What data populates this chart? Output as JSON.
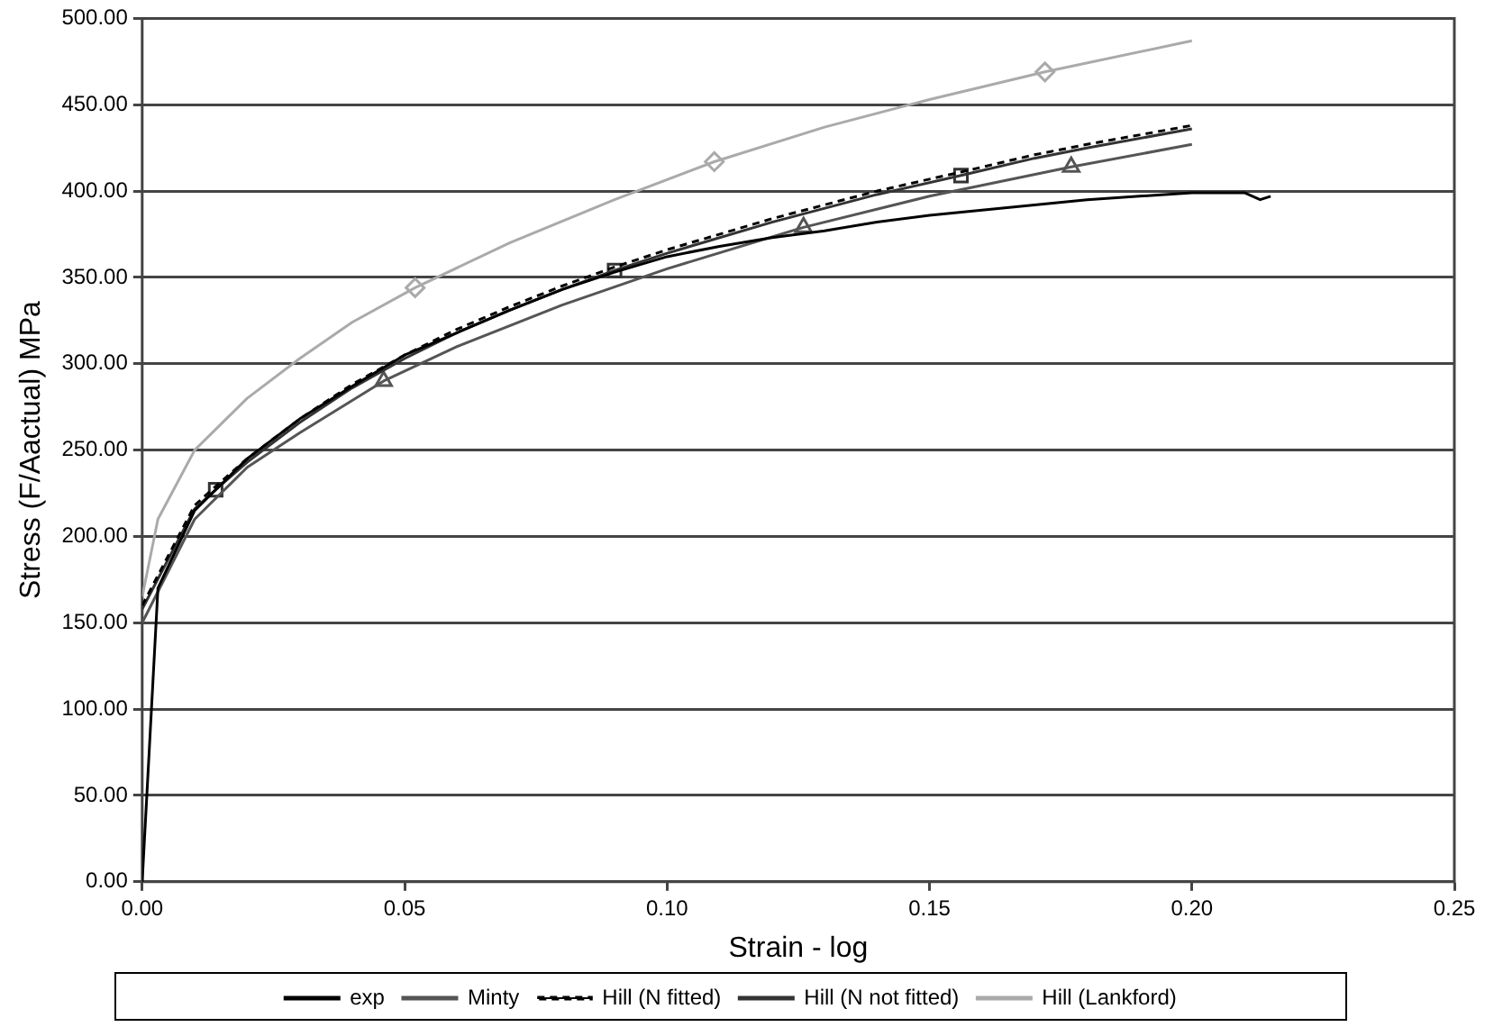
{
  "chart_data": {
    "type": "line",
    "xlabel": "Strain - log",
    "ylabel": "Stress (F/Aactual) MPa",
    "xlim": [
      0,
      0.25
    ],
    "xticks": [
      {
        "value": 0,
        "label": "0.00"
      },
      {
        "value": 0.05,
        "label": "0.05"
      },
      {
        "value": 0.1,
        "label": "0.10"
      },
      {
        "value": 0.15,
        "label": "0.15"
      },
      {
        "value": 0.2,
        "label": "0.20"
      },
      {
        "value": 0.25,
        "label": "0.25"
      }
    ],
    "ylim": [
      0,
      500
    ],
    "yticks": [
      {
        "value": 0,
        "label": "0.00"
      },
      {
        "value": 50,
        "label": "50.00"
      },
      {
        "value": 100,
        "label": "100.00"
      },
      {
        "value": 150,
        "label": "150.00"
      },
      {
        "value": 200,
        "label": "200.00"
      },
      {
        "value": 250,
        "label": "250.00"
      },
      {
        "value": 300,
        "label": "300.00"
      },
      {
        "value": 350,
        "label": "350.00"
      },
      {
        "value": 400,
        "label": "400.00"
      },
      {
        "value": 450,
        "label": "450.00"
      },
      {
        "value": 500,
        "label": "500.00"
      }
    ],
    "grid": "y",
    "legend": "bottom",
    "series": [
      {
        "name": "exp",
        "color": "#000000",
        "line_style": "solid",
        "x": [
          0,
          0.003,
          0.01,
          0.02,
          0.03,
          0.04,
          0.05,
          0.06,
          0.07,
          0.08,
          0.09,
          0.1,
          0.11,
          0.12,
          0.13,
          0.14,
          0.15,
          0.16,
          0.17,
          0.18,
          0.19,
          0.2,
          0.21,
          0.213,
          0.215
        ],
        "values": [
          0,
          170,
          215,
          245,
          268,
          287,
          305,
          318,
          331,
          343,
          353,
          362,
          368,
          373,
          377,
          382,
          386,
          389,
          392,
          395,
          397,
          399,
          399,
          395,
          397
        ]
      },
      {
        "name": "Minty",
        "color": "#555555",
        "line_style": "solid",
        "x": [
          0,
          0.01,
          0.02,
          0.03,
          0.046,
          0.06,
          0.08,
          0.1,
          0.126,
          0.15,
          0.177,
          0.2
        ],
        "values": [
          150,
          210,
          240,
          260,
          290,
          310,
          334,
          355,
          379,
          397,
          414,
          427
        ]
      },
      {
        "name": "Hill (N fitted)",
        "color": "#000000",
        "line_style": "dashed",
        "x": [
          0,
          0.01,
          0.014,
          0.02,
          0.03,
          0.04,
          0.05,
          0.06,
          0.07,
          0.08,
          0.09,
          0.1,
          0.12,
          0.14,
          0.156,
          0.17,
          0.18,
          0.2
        ],
        "values": [
          160,
          218,
          229,
          245,
          268,
          288,
          305,
          320,
          333,
          345,
          356,
          366,
          384,
          400,
          411,
          421,
          427,
          438
        ]
      },
      {
        "name": "Hill (N not fitted)",
        "color": "#333333",
        "line_style": "solid",
        "x": [
          0,
          0.01,
          0.014,
          0.02,
          0.03,
          0.04,
          0.05,
          0.06,
          0.07,
          0.08,
          0.09,
          0.1,
          0.12,
          0.14,
          0.156,
          0.17,
          0.18,
          0.2
        ],
        "values": [
          158,
          216,
          227,
          243,
          266,
          286,
          303,
          318,
          331,
          343,
          354,
          364,
          382,
          398,
          409,
          419,
          425,
          436
        ]
      },
      {
        "name": "Hill (Lankford)",
        "color": "#aaaaaa",
        "line_style": "solid",
        "x": [
          0,
          0.003,
          0.01,
          0.02,
          0.03,
          0.04,
          0.052,
          0.07,
          0.09,
          0.109,
          0.13,
          0.15,
          0.172,
          0.2
        ],
        "values": [
          165,
          210,
          250,
          280,
          303,
          324,
          344,
          370,
          395,
          417,
          437,
          453,
          469,
          487
        ]
      },
      {
        "type": "scatter",
        "color": "#555555",
        "marker": "triangle",
        "x": [
          0.046,
          0.126,
          0.177
        ],
        "values": [
          290,
          379,
          414
        ]
      },
      {
        "type": "scatter",
        "color": "#333333",
        "marker": "square",
        "x": [
          0.014,
          0.09,
          0.156
        ],
        "values": [
          227,
          354,
          409
        ]
      },
      {
        "type": "scatter",
        "color": "#aaaaaa",
        "marker": "diamond",
        "x": [
          0.052,
          0.109,
          0.172
        ],
        "values": [
          344,
          417,
          469
        ]
      }
    ]
  }
}
